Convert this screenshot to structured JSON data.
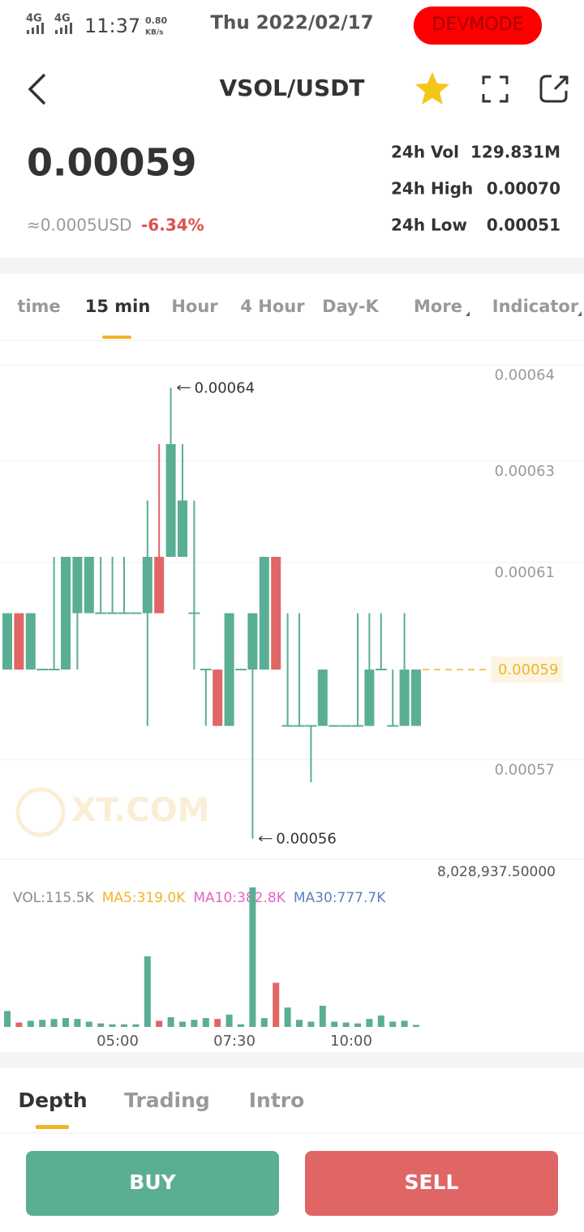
{
  "status_bar": {
    "signal_1": "4G",
    "signal_2": "4G",
    "time": "11:37",
    "speed": "0.80",
    "speed_unit": "KB/s",
    "date": "Thu 2022/02/17",
    "badge": "DEVMODE"
  },
  "header": {
    "title": "VSOL/USDT"
  },
  "ticker": {
    "price": "0.00059",
    "usd_price": "≈0.0005USD",
    "change": "-6.34%",
    "stats": [
      {
        "label": "24h Vol",
        "value": "129.831M"
      },
      {
        "label": "24h High",
        "value": "0.00070"
      },
      {
        "label": "24h Low",
        "value": "0.00051"
      }
    ]
  },
  "intervals": [
    "time",
    "15 min",
    "Hour",
    "4 Hour",
    "Day-K",
    "More",
    "Indicator"
  ],
  "chart": {
    "type": "candlestick",
    "open": [
      0.00059,
      0.0006,
      0.00059,
      0.00059,
      0.00059,
      0.00059,
      0.0006,
      0.0006,
      0.0006,
      0.0006,
      0.0006,
      0.0006,
      0.0006,
      0.00061,
      0.00061,
      0.00061,
      0.0006,
      0.00059,
      0.00059,
      0.00058,
      0.00059,
      0.00059,
      0.00059,
      0.00061,
      0.00058,
      0.00058,
      0.00058,
      0.00058,
      0.00058,
      0.00058,
      0.00058,
      0.00058,
      0.00059,
      0.00058,
      0.00058,
      0.00058
    ],
    "high": [
      0.0006,
      0.0006,
      0.0006,
      0.00059,
      0.00061,
      0.00061,
      0.00061,
      0.00061,
      0.00061,
      0.00061,
      0.00061,
      0.0006,
      0.00062,
      0.00063,
      0.00064,
      0.00063,
      0.00062,
      0.00059,
      0.00059,
      0.0006,
      0.00059,
      0.0006,
      0.00061,
      0.00061,
      0.0006,
      0.0006,
      0.00058,
      0.00059,
      0.00058,
      0.00058,
      0.0006,
      0.0006,
      0.0006,
      0.00059,
      0.0006,
      0.00059
    ],
    "low": [
      0.00059,
      0.00059,
      0.00059,
      0.00059,
      0.00059,
      0.00059,
      0.00059,
      0.0006,
      0.0006,
      0.0006,
      0.0006,
      0.0006,
      0.00058,
      0.0006,
      0.00061,
      0.00061,
      0.00059,
      0.00058,
      0.00058,
      0.00058,
      0.00059,
      0.00056,
      0.00059,
      0.00059,
      0.00058,
      0.00058,
      0.00057,
      0.00058,
      0.00058,
      0.00058,
      0.00058,
      0.00058,
      0.00059,
      0.00058,
      0.00058,
      0.00058
    ],
    "close": [
      0.0006,
      0.00059,
      0.0006,
      0.00059,
      0.00059,
      0.00061,
      0.00061,
      0.00061,
      0.0006,
      0.0006,
      0.0006,
      0.0006,
      0.00061,
      0.0006,
      0.00063,
      0.00062,
      0.0006,
      0.00059,
      0.00058,
      0.0006,
      0.00059,
      0.0006,
      0.00061,
      0.00059,
      0.00058,
      0.00058,
      0.00058,
      0.00059,
      0.00058,
      0.00058,
      0.00058,
      0.00059,
      0.00059,
      0.00058,
      0.00059,
      0.00059
    ],
    "ylim": [
      0.0005565,
      0.0006484
    ],
    "yticks": [
      {
        "value": 0.000644,
        "label": "0.00064"
      },
      {
        "value": 0.000627,
        "label": "0.00063"
      },
      {
        "value": 0.000609,
        "label": "0.00061"
      },
      {
        "value": 0.000574,
        "label": "0.00057"
      }
    ],
    "last_price": 0.00059,
    "high_annotation": 0.00064,
    "low_annotation": 0.00056,
    "up_color": "#5aae94",
    "down_color": "#e06666",
    "watermark": "XT.COM"
  },
  "volume": {
    "values": [
      900000,
      250000,
      350000,
      400000,
      450000,
      500000,
      450000,
      300000,
      200000,
      150000,
      150000,
      150000,
      4000000,
      350000,
      550000,
      300000,
      400000,
      500000,
      450000,
      700000,
      150000,
      7900000,
      500000,
      2500000,
      1100000,
      400000,
      300000,
      1200000,
      300000,
      250000,
      200000,
      450000,
      650000,
      300000,
      350000,
      115500
    ],
    "ylim": [
      0,
      8028937.5
    ],
    "yticks": [
      {
        "value": 8028937.5,
        "label": "8,028,937.50000"
      }
    ],
    "legend": [
      {
        "text": "VOL:115.5K",
        "color": "#8a8a8a"
      },
      {
        "text": "MA5:319.0K",
        "color": "#f0b429"
      },
      {
        "text": "MA10:382.8K",
        "color": "#e066c8"
      },
      {
        "text": "MA30:777.7K",
        "color": "#5b7fc2"
      }
    ],
    "time_labels": [
      "05:00",
      "07:30",
      "10:00"
    ]
  },
  "tabs": [
    "Depth",
    "Trading",
    "Intro"
  ],
  "buttons": {
    "buy": "BUY",
    "sell": "SELL"
  }
}
